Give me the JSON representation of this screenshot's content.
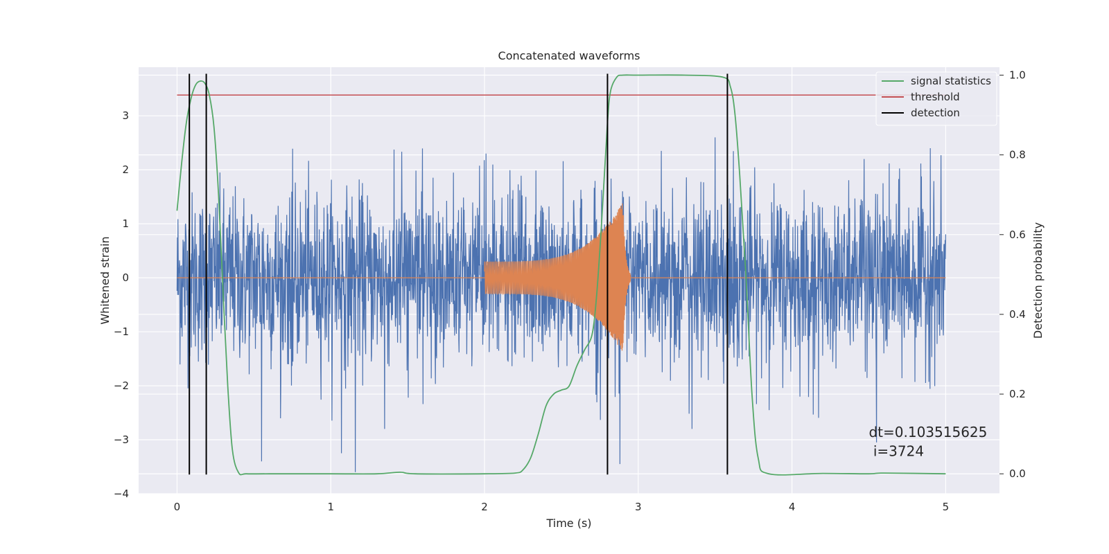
{
  "chart_data": {
    "type": "line",
    "title": "Concatenated waveforms",
    "xlabel": "Time (s)",
    "ylabel": "Whitened strain",
    "y2label": "Detection probability",
    "xlim": [
      -0.25,
      5.35
    ],
    "ylim": [
      -4,
      3.9
    ],
    "y2lim": [
      -0.05,
      1.02
    ],
    "xticks": [
      0,
      1,
      2,
      3,
      4,
      5
    ],
    "xtick_labels": [
      "0",
      "1",
      "2",
      "3",
      "4",
      "5"
    ],
    "yticks": [
      -4,
      -3,
      -2,
      -1,
      0,
      1,
      2,
      3
    ],
    "ytick_labels": [
      "−4",
      "−3",
      "−2",
      "−1",
      "0",
      "1",
      "2",
      "3"
    ],
    "y2ticks": [
      0.0,
      0.2,
      0.4,
      0.6,
      0.8,
      1.0
    ],
    "y2tick_labels": [
      "0.0",
      "0.2",
      "0.4",
      "0.6",
      "0.8",
      "1.0"
    ],
    "grid": true,
    "legend_position": "top-right",
    "legend": [
      {
        "label": "signal statistics",
        "color": "#55a868"
      },
      {
        "label": "threshold",
        "color": "#c44e52"
      },
      {
        "label": "detection",
        "color": "#000000"
      }
    ],
    "colors": {
      "noise": "#4c72b0",
      "template": "#dd8452",
      "signal_statistics": "#55a868",
      "threshold": "#c44e52",
      "detection": "#000000",
      "plot_background": "#eaeaf2",
      "grid": "#ffffff"
    },
    "noise_strain": {
      "x_range": [
        0,
        5
      ],
      "peak_envelope": 2.4,
      "extreme_values": [
        {
          "x": 0.55,
          "y": -3.4
        },
        {
          "x": 1.07,
          "y": -3.25
        },
        {
          "x": 1.16,
          "y": -3.6
        },
        {
          "x": 1.35,
          "y": -2.8
        },
        {
          "x": 2.01,
          "y": 2.3
        },
        {
          "x": 2.88,
          "y": -3.45
        },
        {
          "x": 3.15,
          "y": 2.35
        },
        {
          "x": 3.35,
          "y": -2.8
        },
        {
          "x": 3.5,
          "y": 2.6
        },
        {
          "x": 4.47,
          "y": 2.2
        },
        {
          "x": 4.55,
          "y": -3.05
        },
        {
          "x": 4.9,
          "y": 2.4
        }
      ]
    },
    "template_strain": {
      "x_range": [
        2.0,
        3.0
      ],
      "chirp_start": 2.0,
      "chirp_end": 2.9,
      "amplitude_start": 0.3,
      "amplitude_peak": 1.4
    },
    "threshold": {
      "value": 0.95,
      "x_range": [
        0,
        5
      ]
    },
    "detections": [
      0.08,
      0.19,
      2.8,
      3.58
    ],
    "signal_statistics": {
      "x": [
        0.0,
        0.03,
        0.06,
        0.09,
        0.12,
        0.15,
        0.18,
        0.21,
        0.24,
        0.27,
        0.3,
        0.33,
        0.36,
        0.4,
        0.45,
        0.6,
        1.0,
        1.3,
        1.45,
        1.55,
        2.0,
        2.2,
        2.25,
        2.3,
        2.35,
        2.4,
        2.45,
        2.5,
        2.55,
        2.6,
        2.65,
        2.7,
        2.73,
        2.76,
        2.8,
        2.82,
        2.86,
        2.9,
        3.0,
        3.3,
        3.55,
        3.6,
        3.63,
        3.66,
        3.7,
        3.74,
        3.78,
        3.85,
        4.2,
        4.5,
        4.6,
        5.0
      ],
      "y": [
        0.66,
        0.78,
        0.88,
        0.94,
        0.975,
        0.985,
        0.98,
        0.95,
        0.87,
        0.7,
        0.45,
        0.22,
        0.06,
        0.003,
        0.0,
        0.0,
        0.0,
        0.0,
        0.004,
        0.0,
        0.0,
        0.002,
        0.01,
        0.04,
        0.1,
        0.17,
        0.2,
        0.21,
        0.22,
        0.27,
        0.31,
        0.35,
        0.45,
        0.62,
        0.88,
        0.96,
        0.995,
        1.0,
        1.0,
        1.0,
        0.995,
        0.97,
        0.9,
        0.75,
        0.5,
        0.2,
        0.04,
        0.0,
        0.001,
        0.0,
        0.002,
        0.0
      ]
    }
  },
  "annotation": {
    "line1": "dt=0.103515625",
    "line2": " i=3724"
  }
}
